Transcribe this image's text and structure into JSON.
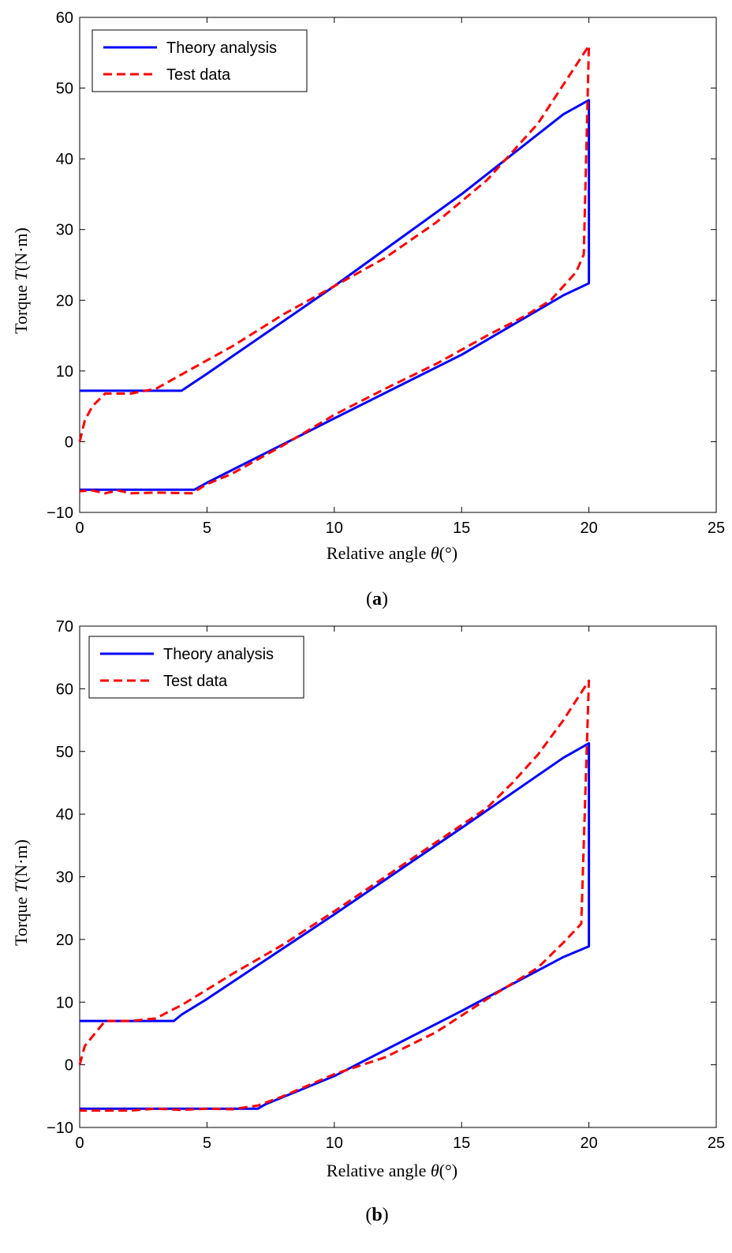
{
  "chart_data": [
    {
      "type": "line",
      "panel": "a",
      "caption_open": "(",
      "caption_letter": "a",
      "caption_close": ")",
      "xlabel": "Relative angle ",
      "xlabel_symbol": "θ",
      "xlabel_unit": "(°)",
      "ylabel": "Torque ",
      "ylabel_symbol": "T",
      "ylabel_unit": "(N·m)",
      "xlim": [
        0,
        25
      ],
      "ylim": [
        -10,
        60
      ],
      "xticks": [
        0,
        5,
        10,
        15,
        20,
        25
      ],
      "yticks": [
        -10,
        0,
        10,
        20,
        30,
        40,
        50,
        60
      ],
      "xtick_labels": [
        "0",
        "5",
        "10",
        "15",
        "20",
        "25"
      ],
      "ytick_labels": [
        "−10",
        "0",
        "10",
        "20",
        "30",
        "40",
        "50",
        "60"
      ],
      "legend": [
        "Theory analysis",
        "Test data"
      ],
      "series": [
        {
          "name": "Theory analysis",
          "color": "#0000ff",
          "style": "solid",
          "x": [
            0,
            4,
            5,
            10,
            15,
            19,
            20,
            20,
            19,
            15,
            10,
            5,
            4.5,
            0
          ],
          "y": [
            7.2,
            7.2,
            9.6,
            22,
            35,
            46.3,
            48.3,
            22.4,
            20.7,
            12.3,
            3.3,
            -5.8,
            -6.8,
            -6.8
          ]
        },
        {
          "name": "Test data",
          "color": "#ff0000",
          "style": "dashed",
          "x": [
            0,
            0.2,
            0.5,
            1,
            2,
            3,
            3.5,
            4,
            5,
            6,
            8,
            10,
            12,
            14,
            16,
            17,
            18,
            19,
            20,
            19.8,
            19.5,
            18.5,
            17.5,
            16,
            14,
            12,
            10,
            8,
            6,
            5,
            4.4,
            3,
            2,
            1.5,
            1,
            0.5,
            0
          ],
          "y": [
            0,
            3,
            5,
            6.8,
            6.8,
            7.5,
            8.5,
            9.5,
            11.5,
            13.5,
            18,
            22,
            26,
            31,
            37,
            41,
            45,
            50.5,
            56,
            26.5,
            24,
            20,
            17.8,
            15,
            11,
            7.5,
            3.8,
            -0.5,
            -4.5,
            -6,
            -7.3,
            -7.2,
            -7.3,
            -6.9,
            -7.3,
            -6.9,
            -7
          ]
        }
      ]
    },
    {
      "type": "line",
      "panel": "b",
      "caption_open": "(",
      "caption_letter": "b",
      "caption_close": ")",
      "xlabel": "Relative angle ",
      "xlabel_symbol": "θ",
      "xlabel_unit": "(°)",
      "ylabel": "Torque ",
      "ylabel_symbol": "T",
      "ylabel_unit": "(N·m)",
      "xlim": [
        0,
        25
      ],
      "ylim": [
        -10,
        70
      ],
      "xticks": [
        0,
        5,
        10,
        15,
        20,
        25
      ],
      "yticks": [
        -10,
        0,
        10,
        20,
        30,
        40,
        50,
        60,
        70
      ],
      "xtick_labels": [
        "0",
        "5",
        "10",
        "15",
        "20",
        "25"
      ],
      "ytick_labels": [
        "−10",
        "0",
        "10",
        "20",
        "30",
        "40",
        "50",
        "60",
        "70"
      ],
      "legend": [
        "Theory analysis",
        "Test data"
      ],
      "series": [
        {
          "name": "Theory analysis",
          "color": "#0000ff",
          "style": "solid",
          "x": [
            0,
            3.7,
            4,
            5,
            10,
            15,
            19,
            20,
            20,
            19,
            15,
            10,
            7.3,
            7,
            0
          ],
          "y": [
            7,
            7,
            8,
            10.5,
            24,
            37.8,
            49,
            51.3,
            18.9,
            17.2,
            8.6,
            -1.8,
            -6.3,
            -7,
            -7
          ],
          "x_note": ""
        },
        {
          "name": "Test data",
          "color": "#ff0000",
          "style": "dashed",
          "x": [
            0,
            0.2,
            0.5,
            1,
            2,
            3,
            3.5,
            4,
            5,
            6,
            8,
            10,
            12,
            14,
            16,
            17,
            18,
            19,
            20,
            19.7,
            19,
            18,
            16,
            14,
            12,
            10,
            8,
            7,
            6,
            5,
            4,
            3,
            2,
            1,
            0
          ],
          "y": [
            0,
            3,
            4.5,
            7,
            7,
            7.4,
            8.5,
            9.5,
            12,
            14.5,
            19.2,
            24.5,
            30,
            35.5,
            41,
            45,
            49.5,
            55,
            61.3,
            22.5,
            19.5,
            15.5,
            10.5,
            5.2,
            1.2,
            -1.5,
            -5,
            -6.5,
            -7.1,
            -7,
            -7.2,
            -7,
            -7.3,
            -7.3,
            -7.3
          ]
        }
      ]
    }
  ]
}
